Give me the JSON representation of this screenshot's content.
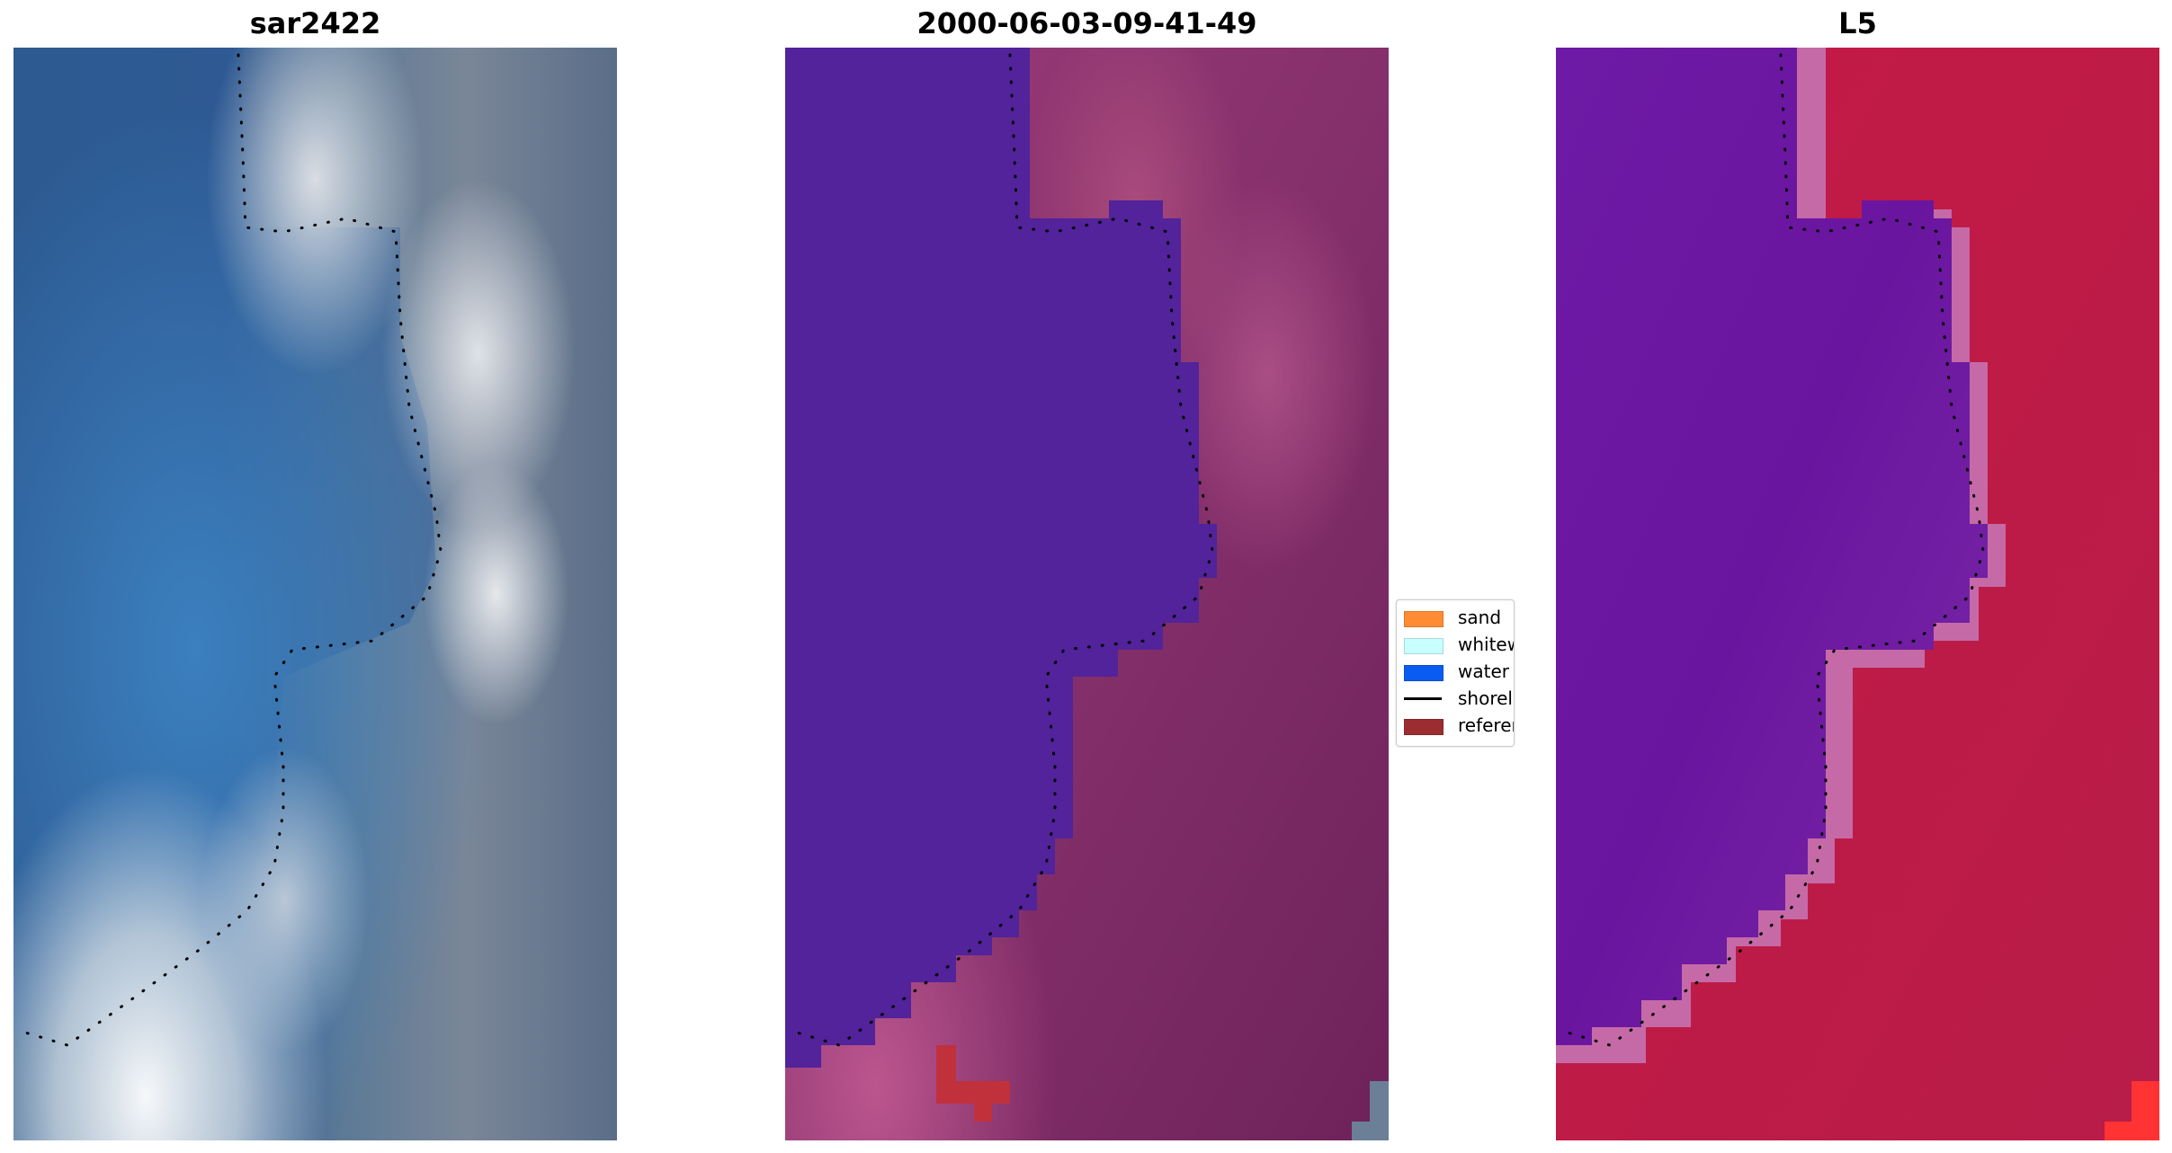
{
  "panels": [
    {
      "title": "sar2422"
    },
    {
      "title": "2000-06-03-09-41-49"
    },
    {
      "title": "L5"
    }
  ],
  "legend": {
    "items": [
      {
        "label": "sand",
        "color": "#ff8c33",
        "kind": "patch"
      },
      {
        "label": "whitewater",
        "color": "#c8ffff",
        "kind": "patch"
      },
      {
        "label": "water",
        "color": "#0a5cf0",
        "kind": "patch"
      },
      {
        "label": "shoreline",
        "color": "#000000",
        "kind": "line"
      },
      {
        "label": "reference shoreline",
        "color": "#9b2d30",
        "kind": "patch"
      }
    ]
  },
  "colors": {
    "rgb_water_dark": "#2f5786",
    "rgb_water_blue": "#3d7fc0",
    "rgb_land_gray": "#6f7f96",
    "rgb_surf_white": "#e8eef2",
    "class_water": "#522497",
    "class_land": "#892d66",
    "class_land_light": "#b34a86",
    "class_ref_shoreline": "#c0313c",
    "ndwi_water": "#6b16a8",
    "ndwi_land": "#c0193f",
    "ndwi_edge": "#c76aa8",
    "ndwi_bright": "#ff3030",
    "shoreline_dots": "#000000"
  }
}
